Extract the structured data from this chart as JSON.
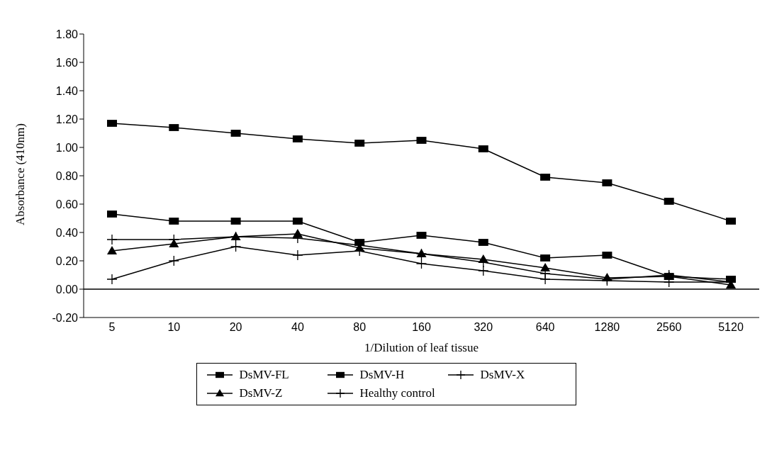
{
  "chart_data": {
    "type": "line",
    "xlabel": "1/Dilution of leaf tissue",
    "ylabel": "Absorbance (410nm)",
    "categories": [
      "5",
      "10",
      "20",
      "40",
      "80",
      "160",
      "320",
      "640",
      "1280",
      "2560",
      "5120"
    ],
    "series": [
      {
        "name": "DsMV-FL",
        "color": "#000000",
        "marker": "square",
        "values": [
          0.53,
          0.48,
          0.48,
          0.48,
          0.33,
          0.38,
          0.33,
          0.22,
          0.24,
          0.09,
          0.07
        ]
      },
      {
        "name": "DsMV-H",
        "color": "#000000",
        "marker": "square",
        "values": [
          1.17,
          1.14,
          1.1,
          1.06,
          1.03,
          1.05,
          0.99,
          0.79,
          0.75,
          0.62,
          0.48
        ]
      },
      {
        "name": "DsMV-X",
        "color": "#000000",
        "marker": "cross",
        "values": [
          0.07,
          0.2,
          0.3,
          0.24,
          0.27,
          0.18,
          0.13,
          0.07,
          0.06,
          0.05,
          0.05
        ]
      },
      {
        "name": "DsMV-Z",
        "color": "#000000",
        "marker": "triangle",
        "values": [
          0.27,
          0.32,
          0.37,
          0.39,
          0.29,
          0.25,
          0.21,
          0.15,
          0.08,
          0.09,
          0.03
        ]
      },
      {
        "name": "Healthy control",
        "color": "#000000",
        "marker": "cross",
        "values": [
          0.35,
          0.35,
          0.37,
          0.36,
          0.31,
          0.25,
          0.19,
          0.11,
          0.07,
          0.1,
          0.05
        ]
      }
    ],
    "ylim": [
      -0.2,
      1.8
    ],
    "yticks": [
      {
        "value": -0.2,
        "label": "-0.20"
      },
      {
        "value": 0,
        "label": "0.00"
      },
      {
        "value": 0.2,
        "label": "0.20"
      },
      {
        "value": 0.4,
        "label": "0.40"
      },
      {
        "value": 0.6,
        "label": "0.60"
      },
      {
        "value": 0.8,
        "label": "0.80"
      },
      {
        "value": 1,
        "label": "1.00"
      },
      {
        "value": 1.2,
        "label": "1.20"
      },
      {
        "value": 1.4,
        "label": "1.40"
      },
      {
        "value": 1.6,
        "label": "1.60"
      },
      {
        "value": 1.8,
        "label": "1.80"
      }
    ],
    "ref_lines": [
      {
        "axis": "y",
        "value": 0,
        "color": "#000000"
      }
    ],
    "grid": false,
    "legend": "bottom",
    "line_style": "solid"
  }
}
